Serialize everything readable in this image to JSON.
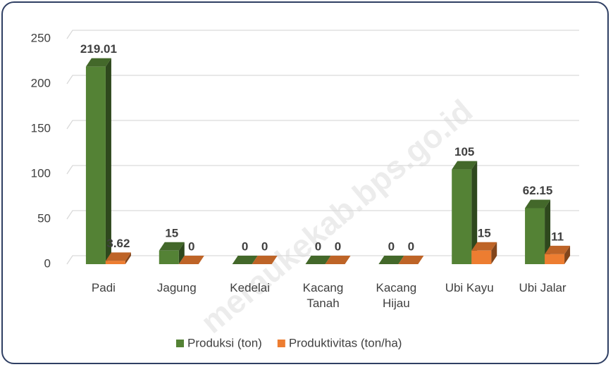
{
  "chart_data": {
    "type": "bar3d",
    "categories": [
      "Padi",
      "Jagung",
      "Kedelai",
      "Kacang Tanah",
      "Kacang Hijau",
      "Ubi Kayu",
      "Ubi Jalar"
    ],
    "series": [
      {
        "name": "Produksi (ton)",
        "color": "#548235",
        "values": [
          219.01,
          15,
          0,
          0,
          0,
          105,
          62.15
        ]
      },
      {
        "name": "Produktivitas (ton/ha)",
        "color": "#ed7d31",
        "values": [
          3.62,
          0,
          0,
          0,
          0,
          15,
          11
        ]
      }
    ],
    "ylim": [
      0,
      250
    ],
    "yticks": [
      0,
      50,
      100,
      150,
      200,
      250
    ],
    "grid": true,
    "legend": "bottom",
    "watermark": "meraukekab.bps.go.id"
  }
}
